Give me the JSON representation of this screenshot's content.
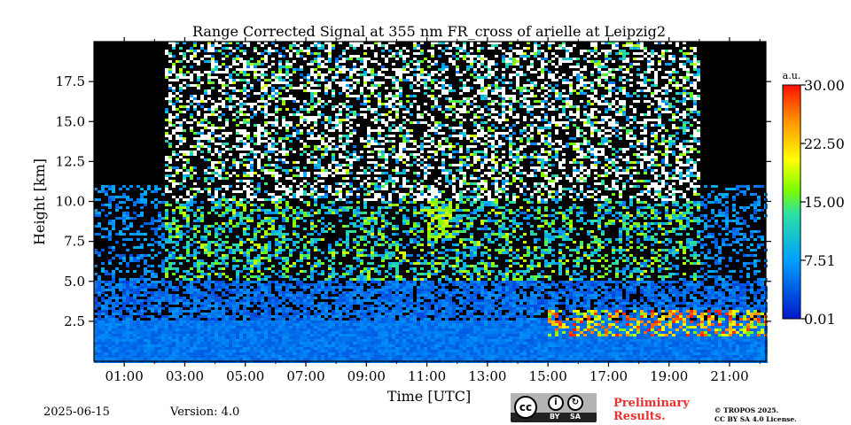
{
  "chart_data": {
    "type": "heatmap",
    "title": "Range Corrected Signal at 355 nm FR_cross of arielle at Leipzig2",
    "xlabel": "Time [UTC]",
    "ylabel": "Height [km]",
    "x_unit": "hours UTC",
    "xlim": [
      0.0,
      22.2
    ],
    "ylim": [
      0.0,
      20.0
    ],
    "x_ticks": [
      1,
      3,
      5,
      7,
      9,
      11,
      13,
      15,
      17,
      19,
      21
    ],
    "x_tick_labels": [
      "01:00",
      "03:00",
      "05:00",
      "07:00",
      "09:00",
      "11:00",
      "13:00",
      "15:00",
      "17:00",
      "19:00",
      "21:00"
    ],
    "y_ticks": [
      2.5,
      5.0,
      7.5,
      10.0,
      12.5,
      15.0,
      17.5
    ],
    "y_tick_labels": [
      "2.5",
      "5.0",
      "7.5",
      "10.0",
      "12.5",
      "15.0",
      "17.5"
    ],
    "colorbar": {
      "label": "a.u.",
      "range": [
        0.01,
        30.0
      ],
      "tick_values": [
        0.01,
        7.51,
        15.0,
        22.5,
        30.0
      ],
      "tick_labels": [
        "0.01",
        "7.51",
        "15.00",
        "22.50",
        "30.00"
      ]
    },
    "colors": {
      "background": "#000000",
      "low": "#0a2a8c",
      "mid": "#00c8ff",
      "high": "#ffea00",
      "max": "#ff2a00"
    },
    "features": {
      "valid_data_hours": [
        2.3,
        20.0
      ],
      "boundary_layer_top_km": 2.5,
      "cirrus": {
        "time": [
          11.0,
          11.8
        ],
        "height": [
          7.7,
          10.0
        ]
      },
      "low_clouds": {
        "time": [
          15.0,
          22.2
        ],
        "height": [
          1.5,
          3.2
        ]
      }
    }
  },
  "footer": {
    "date": "2025-06-15",
    "version": "Version: 4.0",
    "license_badge": {
      "by": "BY",
      "sa": "SA"
    },
    "preliminary": [
      "Preliminary",
      "Results."
    ],
    "copyright": [
      "© TROPOS 2025.",
      "CC BY SA 4.0 License."
    ]
  }
}
